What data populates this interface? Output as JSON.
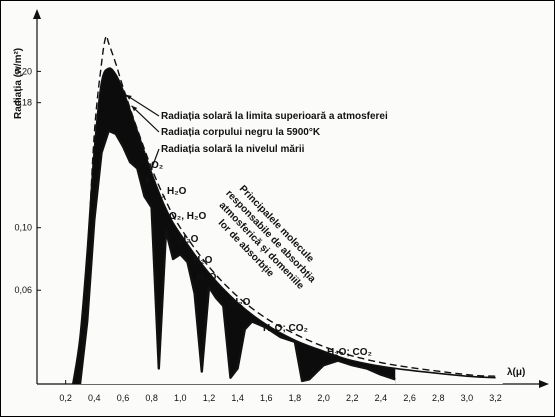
{
  "chart_data": {
    "type": "line",
    "ylabel": "Radiația (w/m²)",
    "xlabel": "λ(μ)",
    "xlim": [
      0,
      3.3
    ],
    "ylim": [
      0,
      0.23
    ],
    "x_ticks": [
      "0,2",
      "0,4",
      "0,6",
      "0,8",
      "1,0",
      "1,2",
      "1,4",
      "1,6",
      "1,8",
      "2,0",
      "2,2",
      "2,4",
      "2,6",
      "2,8",
      "3,0",
      "3,2"
    ],
    "x_tick_values": [
      0.2,
      0.4,
      0.6,
      0.8,
      1.0,
      1.2,
      1.4,
      1.6,
      1.8,
      2.0,
      2.2,
      2.4,
      2.6,
      2.8,
      3.0,
      3.2
    ],
    "y_ticks": [
      "0,06",
      "0,10",
      "0,18",
      "0,20"
    ],
    "y_tick_values": [
      0.06,
      0.1,
      0.18,
      0.2
    ],
    "series": [
      {
        "name": "Radiația solară la limita superioară a atmosferei",
        "style": "solid",
        "x": [
          0.25,
          0.3,
          0.35,
          0.4,
          0.45,
          0.5,
          0.55,
          0.6,
          0.7,
          0.8,
          0.9,
          1.0,
          1.2,
          1.4,
          1.6,
          1.8,
          2.0,
          2.2,
          2.5,
          3.0,
          3.2
        ],
        "y": [
          0.0,
          0.03,
          0.085,
          0.15,
          0.193,
          0.202,
          0.198,
          0.188,
          0.162,
          0.135,
          0.112,
          0.096,
          0.071,
          0.052,
          0.038,
          0.028,
          0.021,
          0.015,
          0.01,
          0.005,
          0.004
        ]
      },
      {
        "name": "Radiația corpului negru la 5900°K",
        "style": "dashed",
        "x": [
          0.3,
          0.35,
          0.4,
          0.45,
          0.48,
          0.5,
          0.55,
          0.6,
          0.7,
          0.8,
          0.9,
          1.0,
          1.2,
          1.4,
          1.6,
          1.8,
          2.0,
          2.2,
          2.5,
          3.0,
          3.2
        ],
        "y": [
          0.0,
          0.075,
          0.16,
          0.205,
          0.222,
          0.218,
          0.205,
          0.19,
          0.163,
          0.138,
          0.117,
          0.1,
          0.075,
          0.056,
          0.042,
          0.032,
          0.024,
          0.018,
          0.012,
          0.006,
          0.005
        ]
      },
      {
        "name": "Radiația solară la nivelul mării",
        "style": "solid",
        "x": [
          0.3,
          0.35,
          0.4,
          0.45,
          0.5,
          0.55,
          0.6,
          0.65,
          0.7,
          0.75,
          0.8,
          0.85,
          0.9,
          0.95,
          1.0,
          1.05,
          1.1,
          1.15,
          1.2,
          1.25,
          1.3,
          1.35,
          1.4,
          1.45,
          1.5,
          1.6,
          1.7,
          1.8,
          1.85,
          1.9,
          2.0,
          2.1,
          2.2,
          2.3,
          2.4,
          2.5
        ],
        "y": [
          0.0,
          0.04,
          0.105,
          0.148,
          0.162,
          0.16,
          0.152,
          0.142,
          0.138,
          0.12,
          0.113,
          0.01,
          0.098,
          0.08,
          0.083,
          0.078,
          0.058,
          0.008,
          0.062,
          0.055,
          0.05,
          0.004,
          0.01,
          0.035,
          0.04,
          0.036,
          0.03,
          0.027,
          0.002,
          0.003,
          0.012,
          0.015,
          0.012,
          0.01,
          0.006,
          0.003
        ]
      }
    ],
    "curve_labels": [
      "Radiația solară la limita superioară a atmosferei",
      "Radiația corpului negru la 5900°K",
      "Radiația solară la nivelul mării"
    ],
    "absorption_labels": [
      {
        "text": "O₂",
        "x": 0.76
      },
      {
        "text": "H₂O",
        "x": 0.84
      },
      {
        "text": "O₂, H₂O",
        "x": 0.94
      },
      {
        "text": "H₂O",
        "x": 1.02
      },
      {
        "text": "H₂O",
        "x": 1.05
      },
      {
        "text": "H₂O",
        "x": 1.1
      },
      {
        "text": "H₂O",
        "x": 1.38
      },
      {
        "text": "H₂O; CO₂",
        "x": 1.45
      },
      {
        "text": "H₂O; CO₂",
        "x": 1.9
      }
    ],
    "annotation": [
      "Principalele molecule",
      "responsabile de absorbția",
      "atmosferică și domeniile",
      "lor de absorbție"
    ],
    "grid": false,
    "legend": "none (curves labelled with leader lines)"
  }
}
